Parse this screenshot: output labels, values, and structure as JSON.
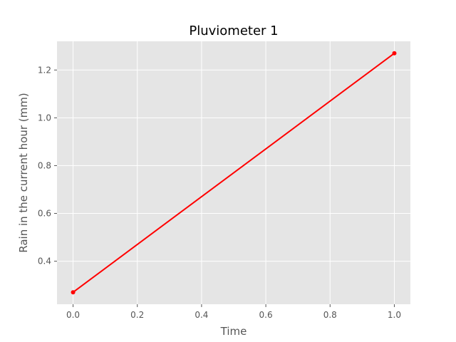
{
  "chart_data": {
    "type": "line",
    "title": "Pluviometer 1",
    "xlabel": "Time",
    "ylabel": "Rain in the current hour (mm)",
    "xlim": [
      -0.05,
      1.05
    ],
    "ylim": [
      0.22,
      1.32
    ],
    "xticks": [
      "0.0",
      "0.2",
      "0.4",
      "0.6",
      "0.8",
      "1.0"
    ],
    "yticks": [
      "0.4",
      "0.6",
      "0.8",
      "1.0",
      "1.2"
    ],
    "grid": true,
    "series": [
      {
        "x": [
          0.0,
          1.0
        ],
        "y": [
          0.27,
          1.27
        ],
        "color": "#ff0000",
        "marker": "circle"
      }
    ],
    "colors": {
      "background": "#e5e5e5",
      "grid": "#ffffff",
      "tick": "#555555"
    }
  }
}
